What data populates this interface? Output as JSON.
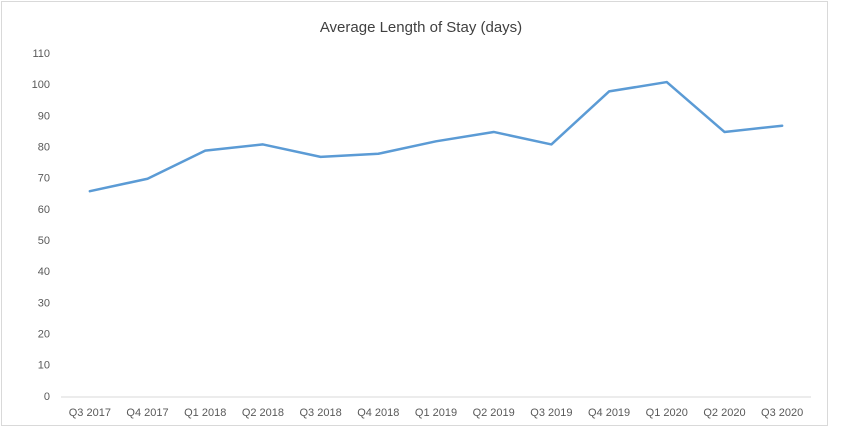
{
  "chart_data": {
    "type": "line",
    "title": "Average Length of Stay (days)",
    "categories": [
      "Q3 2017",
      "Q4 2017",
      "Q1 2018",
      "Q2 2018",
      "Q3 2018",
      "Q4 2018",
      "Q1 2019",
      "Q2 2019",
      "Q3 2019",
      "Q4 2019",
      "Q1 2020",
      "Q2 2020",
      "Q3 2020"
    ],
    "series": [
      {
        "name": "Average Length of Stay",
        "color": "#5b9bd5",
        "values": [
          66,
          70,
          79,
          81,
          77,
          78,
          82,
          85,
          81,
          98,
          101,
          85,
          87
        ]
      }
    ],
    "ylim": [
      0,
      110
    ],
    "yticks": [
      0,
      10,
      20,
      30,
      40,
      50,
      60,
      70,
      80,
      90,
      100,
      110
    ],
    "grid": false
  }
}
